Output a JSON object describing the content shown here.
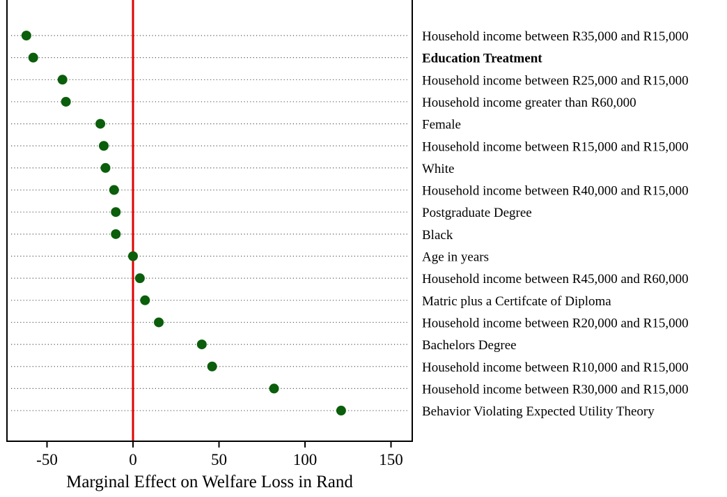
{
  "chart_data": {
    "type": "scatter",
    "title": "",
    "xlabel": "Marginal Effect on Welfare Loss in Rand",
    "ylabel": "",
    "xlim": [
      -75,
      160
    ],
    "xticks": [
      -50,
      0,
      50,
      100,
      150
    ],
    "reference_line": {
      "x": 0,
      "color": "#e00000"
    },
    "marker_color": "#0b5e0b",
    "grid": "dotted horizontal guide lines",
    "categories": [
      {
        "label": "Household income between R35,000 and R15,000",
        "bold": false
      },
      {
        "label": "Education Treatment",
        "bold": true
      },
      {
        "label": "Household income between R25,000 and R15,000",
        "bold": false
      },
      {
        "label": "Household income greater than R60,000",
        "bold": false
      },
      {
        "label": "Female",
        "bold": false
      },
      {
        "label": "Household income between R15,000 and R15,000",
        "bold": false
      },
      {
        "label": "White",
        "bold": false
      },
      {
        "label": "Household income between R40,000 and R15,000",
        "bold": false
      },
      {
        "label": "Postgraduate Degree",
        "bold": false
      },
      {
        "label": "Black",
        "bold": false
      },
      {
        "label": "Age in years",
        "bold": false
      },
      {
        "label": "Household income between R45,000 and R60,000",
        "bold": false
      },
      {
        "label": "Matric plus a Certifcate of Diploma",
        "bold": false
      },
      {
        "label": "Household income between R20,000 and R15,000",
        "bold": false
      },
      {
        "label": "Bachelors Degree",
        "bold": false
      },
      {
        "label": "Household income between R10,000 and R15,000",
        "bold": false
      },
      {
        "label": "Household income between R30,000 and R15,000",
        "bold": false
      },
      {
        "label": "Behavior Violating Expected Utility Theory",
        "bold": false
      }
    ],
    "values": [
      -62,
      -58,
      -41,
      -39,
      -19,
      -17,
      -16,
      -11,
      -10,
      -10,
      0,
      4,
      7,
      15,
      40,
      46,
      82,
      121
    ]
  }
}
